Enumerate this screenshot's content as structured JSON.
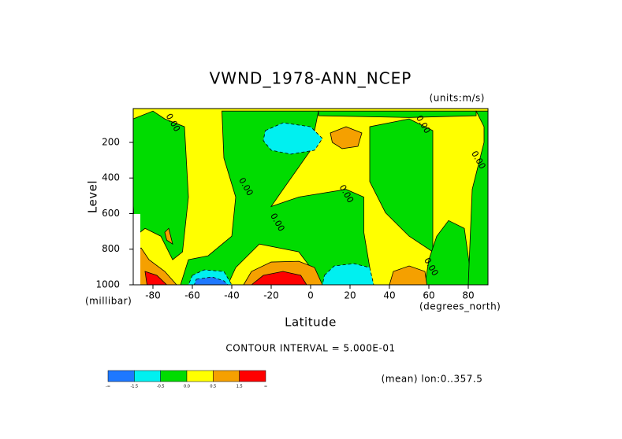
{
  "chart_data": {
    "type": "contour",
    "title": "VWND_1978-ANN_NCEP",
    "units": "(units:m/s)",
    "y_label": "Level",
    "y_unit": "(millibar)",
    "x_label": "Latitude",
    "x_unit": "(degrees_north)",
    "contour_interval": "CONTOUR INTERVAL = 5.000E-01",
    "mean_note": "(mean) lon:0..357.5",
    "xlim": [
      -90,
      90
    ],
    "xticks": [
      -80,
      -60,
      -40,
      -20,
      0,
      20,
      40,
      60,
      80
    ],
    "ylim": [
      1000,
      10
    ],
    "yticks": [
      200,
      400,
      600,
      800,
      1000
    ],
    "colorbar": {
      "colors": [
        "#1e78ff",
        "#00f0f0",
        "#00dc00",
        "#ffff00",
        "#f5a000",
        "#ff0000"
      ],
      "labels": [
        "-∞",
        "-1.5",
        "-0.5",
        "0.0",
        "0.5",
        "1.5",
        "∞"
      ]
    },
    "regions": [
      {
        "color": "#ffff00",
        "points": [
          [
            -90,
            10
          ],
          [
            90,
            10
          ],
          [
            90,
            1000
          ],
          [
            -90,
            1000
          ]
        ]
      },
      {
        "color": "#00dc00",
        "points": [
          [
            -90,
            68
          ],
          [
            -80,
            24
          ],
          [
            -74,
            68
          ],
          [
            -64,
            112
          ],
          [
            -62,
            507
          ],
          [
            -65,
            815
          ],
          [
            -70,
            859
          ],
          [
            -76,
            727
          ],
          [
            -84,
            683
          ],
          [
            -89,
            727
          ],
          [
            -90,
            551
          ]
        ]
      },
      {
        "color": "#00dc00",
        "points": [
          [
            -45,
            24
          ],
          [
            4,
            24
          ],
          [
            0,
            244
          ],
          [
            -14,
            464
          ],
          [
            -20,
            560
          ],
          [
            -6,
            507
          ],
          [
            18,
            464
          ],
          [
            27,
            507
          ],
          [
            27,
            705
          ],
          [
            30,
            903
          ],
          [
            30,
            1000
          ],
          [
            2,
            1000
          ],
          [
            0,
            903
          ],
          [
            -6,
            815
          ],
          [
            -26,
            771
          ],
          [
            -38,
            903
          ],
          [
            -42,
            1000
          ],
          [
            -66,
            1000
          ],
          [
            -62,
            859
          ],
          [
            -52,
            837
          ],
          [
            -40,
            727
          ],
          [
            -38,
            507
          ],
          [
            -44,
            288
          ]
        ]
      },
      {
        "color": "#00dc00",
        "points": [
          [
            4,
            24
          ],
          [
            84,
            24
          ],
          [
            84,
            50
          ],
          [
            50,
            60
          ],
          [
            4,
            50
          ]
        ]
      },
      {
        "color": "#00dc00",
        "points": [
          [
            30,
            112
          ],
          [
            50,
            68
          ],
          [
            62,
            134
          ],
          [
            62,
            507
          ],
          [
            62,
            815
          ],
          [
            50,
            727
          ],
          [
            38,
            595
          ],
          [
            30,
            420
          ],
          [
            30,
            244
          ]
        ]
      },
      {
        "color": "#00dc00",
        "points": [
          [
            64,
            727
          ],
          [
            70,
            639
          ],
          [
            78,
            683
          ],
          [
            82,
            1000
          ],
          [
            58,
            1000
          ],
          [
            60,
            859
          ]
        ]
      },
      {
        "color": "#00dc00",
        "points": [
          [
            84,
            24
          ],
          [
            90,
            24
          ],
          [
            90,
            1000
          ],
          [
            80,
            1000
          ],
          [
            81,
            727
          ],
          [
            82,
            464
          ],
          [
            88,
            200
          ],
          [
            88,
            112
          ]
        ]
      },
      {
        "color": "#00f0f0",
        "dashed": true,
        "points": [
          [
            -23,
            134
          ],
          [
            -14,
            90
          ],
          [
            0,
            112
          ],
          [
            6,
            178
          ],
          [
            2,
            244
          ],
          [
            -10,
            266
          ],
          [
            -20,
            244
          ],
          [
            -24,
            190
          ]
        ]
      },
      {
        "color": "#00f0f0",
        "dashed": true,
        "points": [
          [
            -60,
            947
          ],
          [
            -54,
            916
          ],
          [
            -44,
            925
          ],
          [
            -40,
            1000
          ],
          [
            -62,
            1000
          ]
        ]
      },
      {
        "color": "#1e78ff",
        "dashed": true,
        "points": [
          [
            -58,
            969
          ],
          [
            -50,
            956
          ],
          [
            -44,
            978
          ],
          [
            -42,
            1000
          ],
          [
            -59,
            1000
          ]
        ]
      },
      {
        "color": "#00f0f0",
        "dashed": true,
        "points": [
          [
            7,
            947
          ],
          [
            12,
            894
          ],
          [
            22,
            881
          ],
          [
            30,
            903
          ],
          [
            32,
            1000
          ],
          [
            6,
            1000
          ]
        ]
      },
      {
        "color": "#f5a000",
        "points": [
          [
            10,
            147
          ],
          [
            18,
            112
          ],
          [
            26,
            147
          ],
          [
            24,
            222
          ],
          [
            16,
            235
          ],
          [
            11,
            200
          ]
        ]
      },
      {
        "color": "#f5a000",
        "points": [
          [
            -34,
            1000
          ],
          [
            -30,
            925
          ],
          [
            -20,
            872
          ],
          [
            -6,
            868
          ],
          [
            2,
            903
          ],
          [
            6,
            1000
          ]
        ]
      },
      {
        "color": "#ff0000",
        "points": [
          [
            -30,
            1000
          ],
          [
            -24,
            947
          ],
          [
            -14,
            925
          ],
          [
            -5,
            947
          ],
          [
            -2,
            1000
          ]
        ]
      },
      {
        "color": "#f5a000",
        "points": [
          [
            40,
            1000
          ],
          [
            42,
            925
          ],
          [
            50,
            894
          ],
          [
            58,
            925
          ],
          [
            59,
            1000
          ]
        ]
      },
      {
        "color": "#f5a000",
        "points": [
          [
            -90,
            815
          ],
          [
            -86,
            793
          ],
          [
            -82,
            859
          ],
          [
            -74,
            925
          ],
          [
            -68,
            1000
          ],
          [
            -90,
            1000
          ]
        ]
      },
      {
        "color": "#ff0000",
        "points": [
          [
            -84,
            925
          ],
          [
            -78,
            947
          ],
          [
            -73,
            1000
          ],
          [
            -83,
            1000
          ]
        ]
      },
      {
        "color": "#f5a000",
        "points": [
          [
            -74,
            705
          ],
          [
            -72,
            683
          ],
          [
            -70,
            771
          ],
          [
            -73,
            749
          ]
        ]
      }
    ],
    "contour_labels": [
      {
        "text": "0.00",
        "lat": -70,
        "level": 90
      },
      {
        "text": "0.00",
        "lat": 57,
        "level": 100
      },
      {
        "text": "0.00",
        "lat": -33,
        "level": 450
      },
      {
        "text": "0.00",
        "lat": 18,
        "level": 490
      },
      {
        "text": "0.00",
        "lat": -17,
        "level": 650
      },
      {
        "text": "0.00",
        "lat": 61,
        "level": 900
      },
      {
        "text": "0.00",
        "lat": 85,
        "level": 300
      }
    ]
  }
}
